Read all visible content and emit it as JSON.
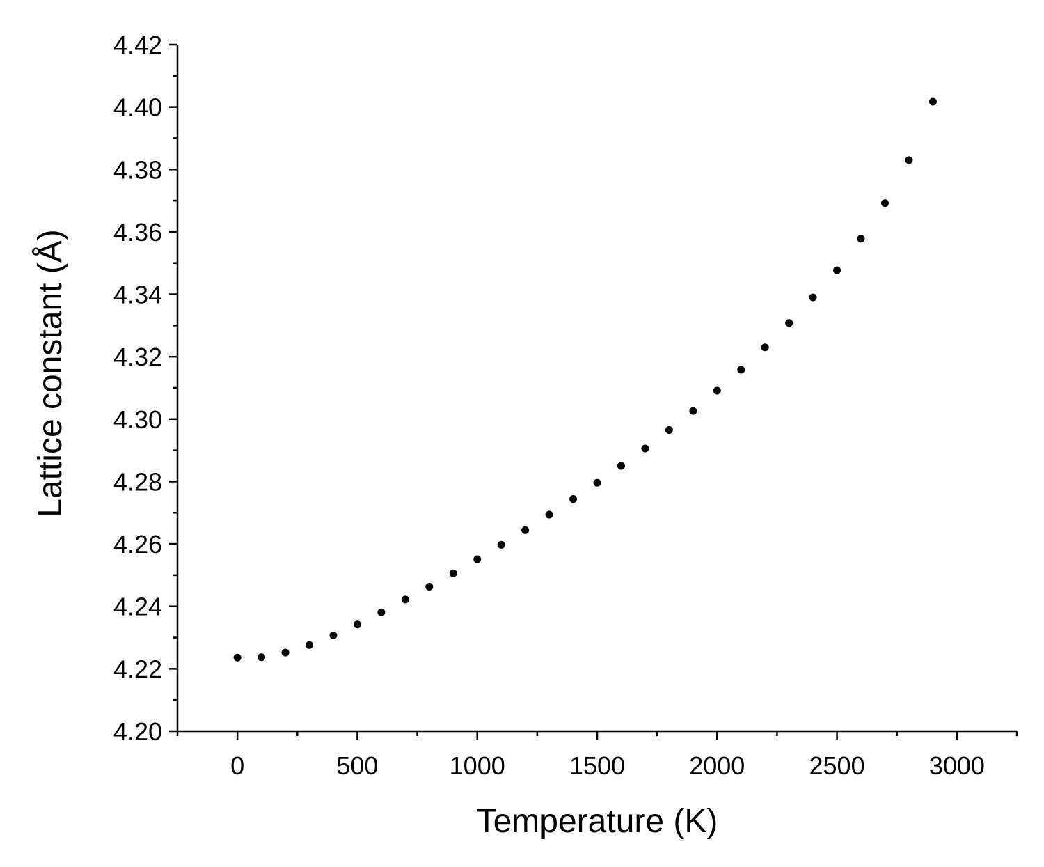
{
  "chart_data": {
    "type": "scatter",
    "title": "",
    "xlabel": "Temperature (K)",
    "ylabel": "Lattice constant (Å)",
    "xlim": [
      -250,
      3250
    ],
    "ylim": [
      4.2,
      4.42
    ],
    "x_ticks": [
      0,
      500,
      1000,
      1500,
      2000,
      2500,
      3000
    ],
    "x_tick_labels": [
      "0",
      "500",
      "1000",
      "1500",
      "2000",
      "2500",
      "3000"
    ],
    "y_ticks": [
      4.2,
      4.22,
      4.24,
      4.26,
      4.28,
      4.3,
      4.32,
      4.34,
      4.36,
      4.38,
      4.4,
      4.42
    ],
    "y_tick_labels": [
      "4.20",
      "4.22",
      "4.24",
      "4.26",
      "4.28",
      "4.30",
      "4.32",
      "4.34",
      "4.36",
      "4.38",
      "4.40",
      "4.42"
    ],
    "grid": false,
    "marker_color": "#000000",
    "series": [
      {
        "name": "Lattice constant",
        "x": [
          0,
          100,
          200,
          300,
          400,
          500,
          600,
          700,
          800,
          900,
          1000,
          1100,
          1200,
          1300,
          1400,
          1500,
          1600,
          1700,
          1800,
          1900,
          2000,
          2100,
          2200,
          2300,
          2400,
          2500,
          2600,
          2700,
          2800,
          2900
        ],
        "y": [
          4.2236,
          4.2237,
          4.2252,
          4.2276,
          4.2307,
          4.2342,
          4.2381,
          4.2422,
          4.2463,
          4.2506,
          4.2551,
          4.2597,
          4.2644,
          4.2694,
          4.2744,
          4.2796,
          4.285,
          4.2906,
          4.2965,
          4.3026,
          4.3091,
          4.3158,
          4.323,
          4.3308,
          4.339,
          4.3477,
          4.3578,
          4.3692,
          4.383,
          4.4017
        ]
      }
    ]
  }
}
